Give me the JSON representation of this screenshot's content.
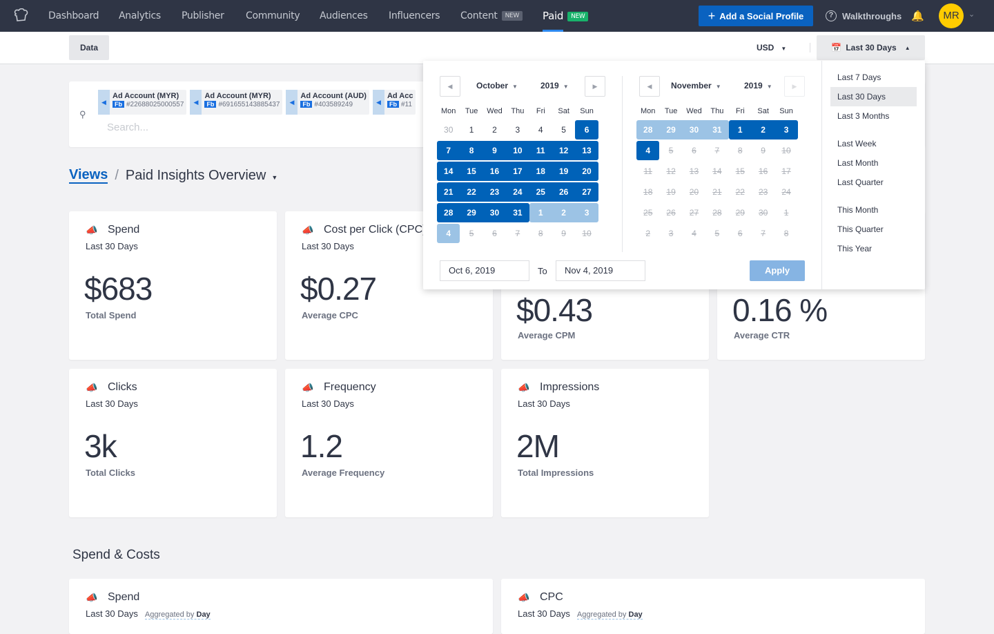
{
  "nav": {
    "items": [
      "Dashboard",
      "Analytics",
      "Publisher",
      "Community",
      "Audiences",
      "Influencers",
      "Content",
      "Paid"
    ],
    "content_badge": "NEW",
    "paid_badge": "NEW",
    "add_profile": "Add a Social Profile",
    "walkthroughs": "Walkthroughs",
    "avatar": "MR"
  },
  "subheader": {
    "data_tab": "Data",
    "currency": "USD",
    "range": "Last 30 Days"
  },
  "search": {
    "placeholder": "Search...",
    "accounts": [
      {
        "name": "Ad Account (MYR)",
        "network": "Fb",
        "id": "#22688025000557"
      },
      {
        "name": "Ad Account (MYR)",
        "network": "Fb",
        "id": "#691655143885437"
      },
      {
        "name": "Ad Account (AUD)",
        "network": "Fb",
        "id": "#403589249"
      },
      {
        "name": "Ad Acc",
        "network": "Fb",
        "id": "#11"
      }
    ]
  },
  "breadcrumb": {
    "views": "Views",
    "sep": "/",
    "current": "Paid Insights Overview"
  },
  "metrics": [
    {
      "title": "Spend",
      "period": "Last 30 Days",
      "value": "$683",
      "label": "Total Spend"
    },
    {
      "title": "Cost per Click (CPC)",
      "period": "Last 30 Days",
      "value": "$0.27",
      "label": "Average CPC"
    },
    {
      "title": "",
      "period": "",
      "value": "$0.43",
      "label": "Average CPM"
    },
    {
      "title": "",
      "period": "",
      "value": "0.16 %",
      "label": "Average CTR"
    },
    {
      "title": "Clicks",
      "period": "Last 30 Days",
      "value": "3k",
      "label": "Total Clicks"
    },
    {
      "title": "Frequency",
      "period": "Last 30 Days",
      "value": "1.2",
      "label": "Average Frequency"
    },
    {
      "title": "Impressions",
      "period": "Last 30 Days",
      "value": "2M",
      "label": "Total Impressions"
    }
  ],
  "section": "Spend & Costs",
  "bottom_cards": [
    {
      "title": "Spend",
      "period": "Last 30 Days",
      "agg": "Aggregated by",
      "agg_value": "Day"
    },
    {
      "title": "CPC",
      "period": "Last 30 Days",
      "agg": "Aggregated by",
      "agg_value": "Day"
    }
  ],
  "datepicker": {
    "weekdays": [
      "Mon",
      "Tue",
      "Wed",
      "Thu",
      "Fri",
      "Sat",
      "Sun"
    ],
    "left": {
      "month": "October",
      "year": "2019",
      "days": [
        [
          "30",
          "muted"
        ],
        [
          "1",
          ""
        ],
        [
          "2",
          ""
        ],
        [
          "3",
          ""
        ],
        [
          "4",
          ""
        ],
        [
          "5",
          ""
        ],
        [
          "6",
          "sel"
        ],
        [
          "7",
          "sel"
        ],
        [
          "8",
          "sel"
        ],
        [
          "9",
          "sel"
        ],
        [
          "10",
          "sel"
        ],
        [
          "11",
          "sel"
        ],
        [
          "12",
          "sel"
        ],
        [
          "13",
          "sel"
        ],
        [
          "14",
          "sel"
        ],
        [
          "15",
          "sel"
        ],
        [
          "16",
          "sel"
        ],
        [
          "17",
          "sel"
        ],
        [
          "18",
          "sel"
        ],
        [
          "19",
          "sel"
        ],
        [
          "20",
          "sel"
        ],
        [
          "21",
          "sel"
        ],
        [
          "22",
          "sel"
        ],
        [
          "23",
          "sel"
        ],
        [
          "24",
          "sel"
        ],
        [
          "25",
          "sel"
        ],
        [
          "26",
          "sel"
        ],
        [
          "27",
          "sel"
        ],
        [
          "28",
          "sel"
        ],
        [
          "29",
          "sel"
        ],
        [
          "30",
          "sel"
        ],
        [
          "31",
          "sel"
        ],
        [
          "1",
          "light"
        ],
        [
          "2",
          "light"
        ],
        [
          "3",
          "light"
        ],
        [
          "4",
          "light"
        ],
        [
          "5",
          "dis"
        ],
        [
          "6",
          "dis"
        ],
        [
          "7",
          "dis"
        ],
        [
          "8",
          "dis"
        ],
        [
          "9",
          "dis"
        ],
        [
          "10",
          "dis"
        ]
      ]
    },
    "right": {
      "month": "November",
      "year": "2019",
      "days": [
        [
          "28",
          "light"
        ],
        [
          "29",
          "light"
        ],
        [
          "30",
          "light"
        ],
        [
          "31",
          "light"
        ],
        [
          "1",
          "sel"
        ],
        [
          "2",
          "sel"
        ],
        [
          "3",
          "sel"
        ],
        [
          "4",
          "sel"
        ],
        [
          "5",
          "dis"
        ],
        [
          "6",
          "dis"
        ],
        [
          "7",
          "dis"
        ],
        [
          "8",
          "dis"
        ],
        [
          "9",
          "dis"
        ],
        [
          "10",
          "dis"
        ],
        [
          "11",
          "dis"
        ],
        [
          "12",
          "dis"
        ],
        [
          "13",
          "dis"
        ],
        [
          "14",
          "dis"
        ],
        [
          "15",
          "dis"
        ],
        [
          "16",
          "dis"
        ],
        [
          "17",
          "dis"
        ],
        [
          "18",
          "dis"
        ],
        [
          "19",
          "dis"
        ],
        [
          "20",
          "dis"
        ],
        [
          "21",
          "dis"
        ],
        [
          "22",
          "dis"
        ],
        [
          "23",
          "dis"
        ],
        [
          "24",
          "dis"
        ],
        [
          "25",
          "dis"
        ],
        [
          "26",
          "dis"
        ],
        [
          "27",
          "dis"
        ],
        [
          "28",
          "dis"
        ],
        [
          "29",
          "dis"
        ],
        [
          "30",
          "dis"
        ],
        [
          "1",
          "dis"
        ],
        [
          "2",
          "dis"
        ],
        [
          "3",
          "dis"
        ],
        [
          "4",
          "dis"
        ],
        [
          "5",
          "dis"
        ],
        [
          "6",
          "dis"
        ],
        [
          "7",
          "dis"
        ],
        [
          "8",
          "dis"
        ]
      ]
    },
    "from": "Oct 6, 2019",
    "to_label": "To",
    "to": "Nov 4, 2019",
    "apply": "Apply",
    "presets": [
      "Last 7 Days",
      "Last 30 Days",
      "Last 3 Months",
      "Last Week",
      "Last Month",
      "Last Quarter",
      "This Month",
      "This Quarter",
      "This Year"
    ],
    "active_preset": "Last 30 Days"
  },
  "colors": {
    "nav_bg": "#2f3545",
    "accent": "#0a62c0",
    "range_selected": "#0062b8",
    "range_hover": "#9cc3e5",
    "avatar": "#ffcc00"
  }
}
